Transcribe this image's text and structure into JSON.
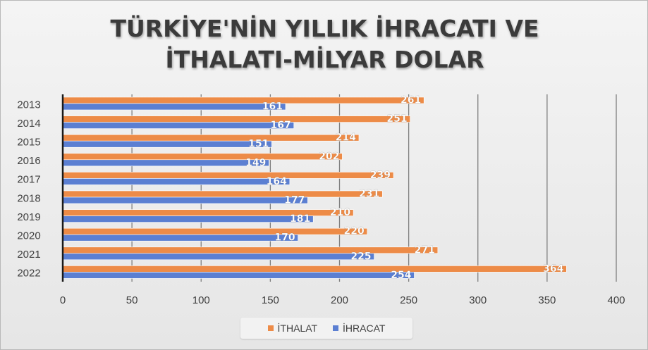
{
  "chart_data": {
    "type": "bar",
    "orientation": "horizontal",
    "title": "TÜRKİYE'NİN YILLIK İHRACATI VE İTHALATI-MİLYAR DOLAR",
    "title_lines": [
      "TÜRKİYE'NİN YILLIK İHRACATI VE",
      "İTHALATI-MİLYAR DOLAR"
    ],
    "categories": [
      "2013",
      "2014",
      "2015",
      "2016",
      "2017",
      "2018",
      "2019",
      "2020",
      "2021",
      "2022"
    ],
    "series": [
      {
        "name": "İTHALAT",
        "color": "#ED8B47",
        "values": [
          261,
          251,
          214,
          202,
          239,
          231,
          210,
          220,
          271,
          364
        ]
      },
      {
        "name": "İHRACAT",
        "color": "#5B7FD2",
        "values": [
          161,
          167,
          151,
          149,
          164,
          177,
          181,
          170,
          225,
          254
        ]
      }
    ],
    "xlim": [
      0,
      400
    ],
    "xticks": [
      "0",
      "50",
      "100",
      "150",
      "200",
      "250",
      "300",
      "350",
      "400"
    ],
    "grid": true,
    "data_labels": true,
    "legend_position": "bottom"
  }
}
